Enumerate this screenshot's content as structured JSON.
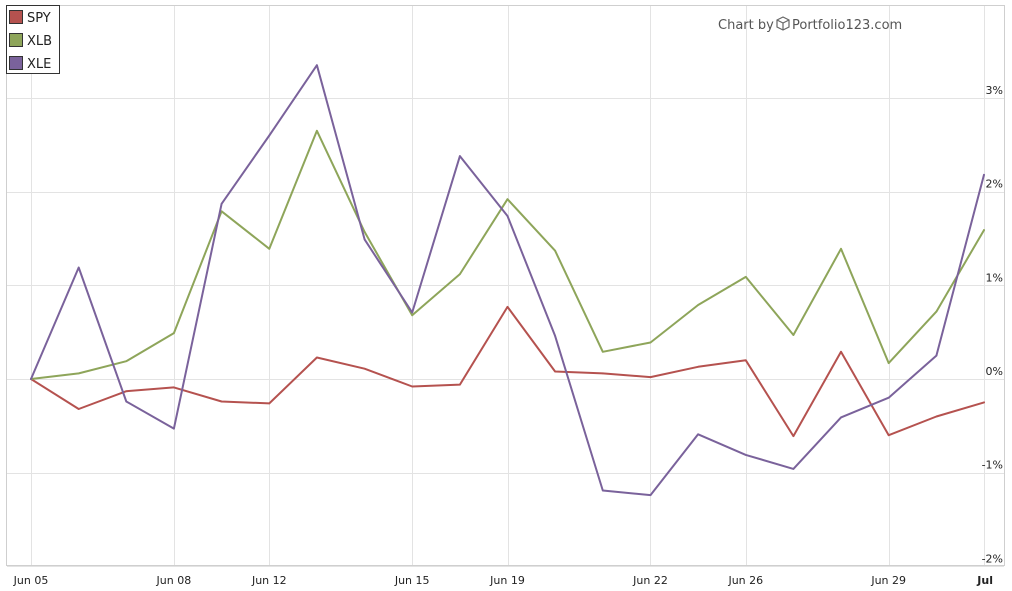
{
  "credit": {
    "prefix": "Chart by",
    "brand": "Portfolio123.com"
  },
  "chart_data": {
    "type": "line",
    "x": [
      "Jun 05",
      "Jun 06",
      "Jun 07",
      "Jun 08",
      "Jun 09",
      "Jun 12",
      "Jun 13",
      "Jun 14",
      "Jun 15",
      "Jun 16",
      "Jun 19",
      "Jun 20",
      "Jun 21",
      "Jun 22",
      "Jun 23",
      "Jun 26",
      "Jun 27",
      "Jun 28",
      "Jun 29",
      "Jun 30",
      "Jul 03"
    ],
    "x_tick_labels": [
      {
        "index": 0,
        "label": "Jun 05",
        "bold": false
      },
      {
        "index": 3,
        "label": "Jun 08",
        "bold": false
      },
      {
        "index": 5,
        "label": "Jun 12",
        "bold": false
      },
      {
        "index": 8,
        "label": "Jun 15",
        "bold": false
      },
      {
        "index": 10,
        "label": "Jun 19",
        "bold": false
      },
      {
        "index": 13,
        "label": "Jun 22",
        "bold": false
      },
      {
        "index": 15,
        "label": "Jun 26",
        "bold": false
      },
      {
        "index": 18,
        "label": "Jun 29",
        "bold": false
      },
      {
        "index": 20,
        "label": "Jul",
        "bold": true
      }
    ],
    "y_ticks": [
      3,
      2,
      1,
      0,
      -1,
      -2
    ],
    "y_tick_labels": [
      "3%",
      "2%",
      "1%",
      "0%",
      "-1%",
      "-2%"
    ],
    "ylim": [
      -2,
      3.5
    ],
    "y_unit": "%",
    "grid": true,
    "legend_position": "top-left",
    "series": [
      {
        "name": "SPY",
        "color": "#b5524f",
        "values": [
          0,
          -0.32,
          -0.13,
          -0.09,
          -0.24,
          -0.26,
          0.23,
          0.11,
          -0.08,
          -0.06,
          0.77,
          0.08,
          0.06,
          0.02,
          0.13,
          0.2,
          -0.61,
          0.29,
          -0.6,
          -0.4,
          -0.25
        ]
      },
      {
        "name": "XLB",
        "color": "#8ea55a",
        "values": [
          0,
          0.06,
          0.19,
          0.49,
          1.79,
          1.39,
          2.65,
          1.57,
          0.68,
          1.12,
          1.92,
          1.37,
          0.29,
          0.39,
          0.79,
          1.09,
          0.47,
          1.39,
          0.17,
          0.72,
          1.59
        ]
      },
      {
        "name": "XLE",
        "color": "#7a629b",
        "values": [
          0,
          1.19,
          -0.24,
          -0.53,
          1.87,
          2.6,
          3.35,
          1.49,
          0.71,
          2.38,
          1.74,
          0.46,
          -1.19,
          -1.24,
          -0.59,
          -0.81,
          -0.96,
          -0.41,
          -0.2,
          0.25,
          2.18
        ]
      }
    ]
  }
}
